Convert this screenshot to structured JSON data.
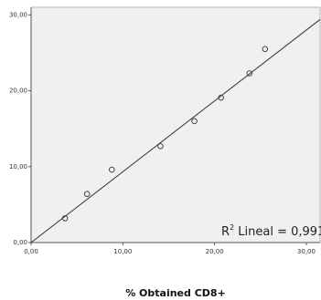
{
  "chart_data": {
    "type": "scatter",
    "title": "",
    "xlabel": "% Obtained CD8+",
    "ylabel": "",
    "xlim": [
      0,
      31.5
    ],
    "ylim": [
      0,
      31
    ],
    "x_ticks": [
      0,
      10,
      20,
      30
    ],
    "y_ticks": [
      0,
      10,
      20,
      30
    ],
    "x_tick_labels": [
      "0,00",
      "10,00",
      "20,00",
      "30,00"
    ],
    "y_tick_labels": [
      "0,00",
      "10,00",
      "20,00",
      "30,00"
    ],
    "grid": false,
    "series": [
      {
        "points": [
          {
            "x": 3.7,
            "y": 3.2
          },
          {
            "x": 6.1,
            "y": 6.4
          },
          {
            "x": 8.8,
            "y": 9.6
          },
          {
            "x": 14.1,
            "y": 12.7
          },
          {
            "x": 17.8,
            "y": 16.0
          },
          {
            "x": 20.7,
            "y": 19.1
          },
          {
            "x": 23.8,
            "y": 22.3
          },
          {
            "x": 25.5,
            "y": 25.5
          }
        ]
      }
    ],
    "fit_line": {
      "from": [
        0,
        0
      ],
      "to": [
        31.5,
        29.4
      ]
    },
    "annotation": {
      "prefix": "R",
      "sup": "2",
      "suffix": " Lineal = 0,991"
    },
    "colors": {
      "plot_background": "#f0f0f0",
      "axis": "#555555",
      "line": "#333333",
      "marker": "#444444"
    }
  }
}
